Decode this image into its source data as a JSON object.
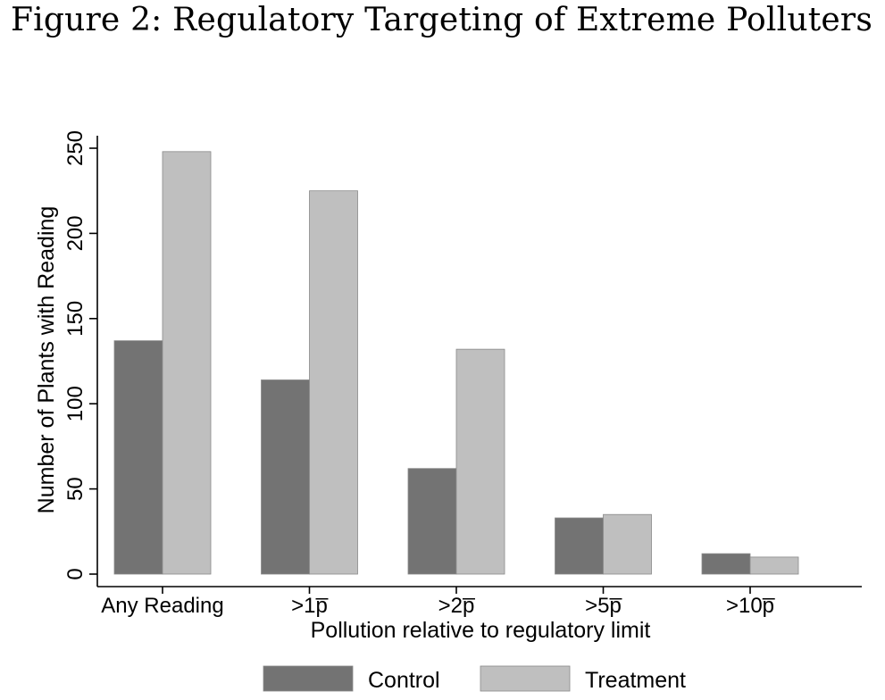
{
  "figure": {
    "title": "Figure 2: Regulatory Targeting of Extreme Polluters"
  },
  "chart_data": {
    "type": "bar",
    "title": "",
    "xlabel": "Pollution relative to regulatory limit",
    "ylabel": "Number of Plants with Reading",
    "categories": [
      "Any Reading",
      ">1p̅",
      ">2p̅",
      ">5p̅",
      ">10p̅"
    ],
    "series": [
      {
        "name": "Control",
        "values": [
          137,
          114,
          62,
          33,
          12
        ],
        "color": "#737373"
      },
      {
        "name": "Treatment",
        "values": [
          248,
          225,
          132,
          35,
          10
        ],
        "color": "#bfbfbf"
      }
    ],
    "ylim": [
      0,
      250
    ],
    "yticks": [
      0,
      50,
      100,
      150,
      200,
      250
    ],
    "grid": false,
    "legend_position": "bottom"
  }
}
